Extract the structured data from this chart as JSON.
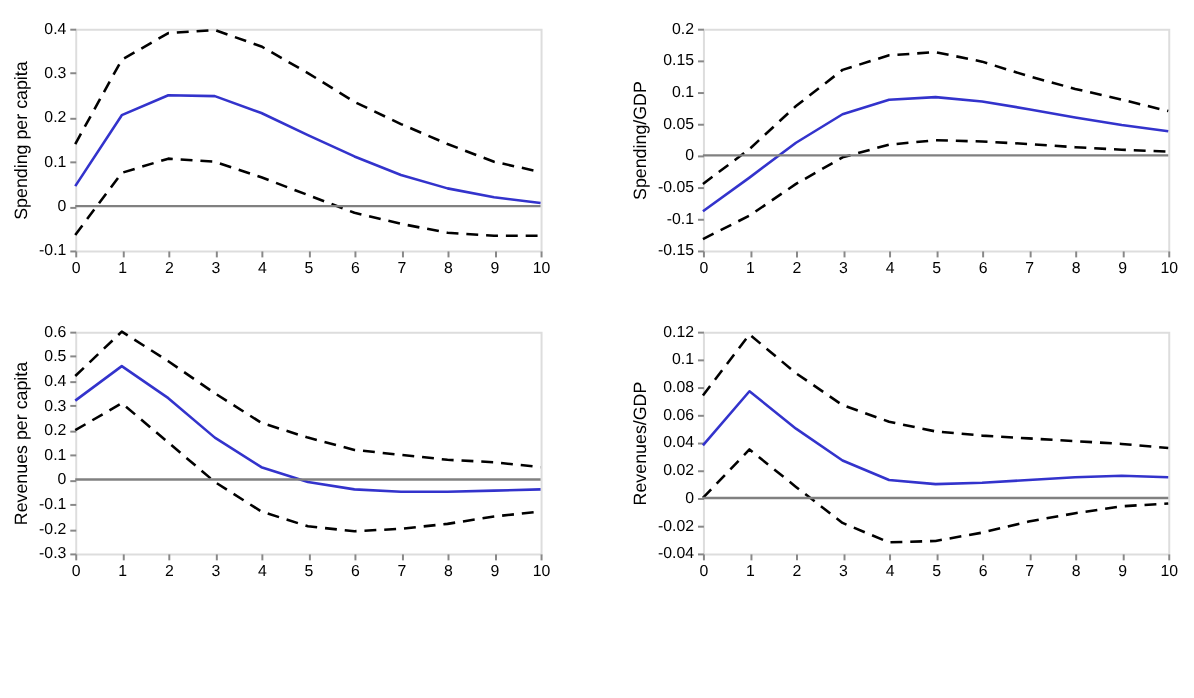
{
  "chart_data": [
    {
      "type": "line",
      "ylabel": "Spending per capita",
      "x": [
        0,
        1,
        2,
        3,
        4,
        5,
        6,
        7,
        8,
        9,
        10
      ],
      "xlim": [
        0,
        10
      ],
      "xticks": [
        0,
        1,
        2,
        3,
        4,
        5,
        6,
        7,
        8,
        9,
        10
      ],
      "ylim": [
        -0.1,
        0.4
      ],
      "yticks": [
        -0.1,
        0,
        0.1,
        0.2,
        0.3,
        0.4
      ],
      "grid": false,
      "ref_lines": [
        {
          "axis": "y",
          "value": 0,
          "color": "#808080"
        }
      ],
      "series": [
        {
          "color": "#3333cc",
          "line_style": "solid",
          "values": [
            0.045,
            0.205,
            0.25,
            0.248,
            0.21,
            0.16,
            0.112,
            0.07,
            0.04,
            0.02,
            0.007
          ]
        },
        {
          "color": "#000000",
          "line_style": "dashed",
          "values": [
            0.14,
            0.33,
            0.39,
            0.397,
            0.36,
            0.3,
            0.235,
            0.185,
            0.14,
            0.1,
            0.077
          ]
        },
        {
          "color": "#000000",
          "line_style": "dashed",
          "values": [
            -0.065,
            0.075,
            0.107,
            0.1,
            0.065,
            0.025,
            -0.015,
            -0.04,
            -0.06,
            -0.067,
            -0.067
          ]
        }
      ]
    },
    {
      "type": "line",
      "ylabel": "Spending/GDP",
      "x": [
        0,
        1,
        2,
        3,
        4,
        5,
        6,
        7,
        8,
        9,
        10
      ],
      "xlim": [
        0,
        10
      ],
      "xticks": [
        0,
        1,
        2,
        3,
        4,
        5,
        6,
        7,
        8,
        9,
        10
      ],
      "ylim": [
        -0.15,
        0.2
      ],
      "yticks": [
        -0.15,
        -0.1,
        -0.05,
        0,
        0.05,
        0.1,
        0.15,
        0.2
      ],
      "grid": false,
      "ref_lines": [
        {
          "axis": "y",
          "value": 0,
          "color": "#808080"
        }
      ],
      "series": [
        {
          "color": "#3333cc",
          "line_style": "solid",
          "values": [
            -0.088,
            -0.035,
            0.02,
            0.065,
            0.088,
            0.092,
            0.085,
            0.073,
            0.06,
            0.048,
            0.038
          ]
        },
        {
          "color": "#000000",
          "line_style": "dashed",
          "values": [
            -0.045,
            0.01,
            0.078,
            0.135,
            0.158,
            0.163,
            0.148,
            0.125,
            0.105,
            0.088,
            0.07
          ]
        },
        {
          "color": "#000000",
          "line_style": "dashed",
          "values": [
            -0.132,
            -0.095,
            -0.045,
            -0.003,
            0.017,
            0.024,
            0.022,
            0.018,
            0.013,
            0.009,
            0.006
          ]
        }
      ]
    },
    {
      "type": "line",
      "ylabel": "Revenues per capita",
      "x": [
        0,
        1,
        2,
        3,
        4,
        5,
        6,
        7,
        8,
        9,
        10
      ],
      "xlim": [
        0,
        10
      ],
      "xticks": [
        0,
        1,
        2,
        3,
        4,
        5,
        6,
        7,
        8,
        9,
        10
      ],
      "ylim": [
        -0.3,
        0.6
      ],
      "yticks": [
        -0.3,
        -0.2,
        -0.1,
        0,
        0.1,
        0.2,
        0.3,
        0.4,
        0.5,
        0.6
      ],
      "grid": false,
      "ref_lines": [
        {
          "axis": "y",
          "value": 0,
          "color": "#808080"
        }
      ],
      "series": [
        {
          "color": "#3333cc",
          "line_style": "solid",
          "values": [
            0.32,
            0.46,
            0.33,
            0.17,
            0.05,
            -0.01,
            -0.04,
            -0.05,
            -0.05,
            -0.045,
            -0.04
          ]
        },
        {
          "color": "#000000",
          "line_style": "dashed",
          "values": [
            0.42,
            0.6,
            0.48,
            0.35,
            0.23,
            0.17,
            0.12,
            0.1,
            0.08,
            0.07,
            0.05
          ]
        },
        {
          "color": "#000000",
          "line_style": "dashed",
          "values": [
            0.2,
            0.31,
            0.15,
            -0.01,
            -0.13,
            -0.19,
            -0.21,
            -0.2,
            -0.18,
            -0.15,
            -0.13
          ]
        }
      ]
    },
    {
      "type": "line",
      "ylabel": "Revenues/GDP",
      "x": [
        0,
        1,
        2,
        3,
        4,
        5,
        6,
        7,
        8,
        9,
        10
      ],
      "xlim": [
        0,
        10
      ],
      "xticks": [
        0,
        1,
        2,
        3,
        4,
        5,
        6,
        7,
        8,
        9,
        10
      ],
      "ylim": [
        -0.04,
        0.12
      ],
      "yticks": [
        -0.04,
        -0.02,
        0,
        0.02,
        0.04,
        0.06,
        0.08,
        0.1,
        0.12
      ],
      "grid": false,
      "ref_lines": [
        {
          "axis": "y",
          "value": 0,
          "color": "#808080"
        }
      ],
      "series": [
        {
          "color": "#3333cc",
          "line_style": "solid",
          "values": [
            0.038,
            0.077,
            0.05,
            0.027,
            0.013,
            0.01,
            0.011,
            0.013,
            0.015,
            0.016,
            0.015
          ]
        },
        {
          "color": "#000000",
          "line_style": "dashed",
          "values": [
            0.074,
            0.118,
            0.09,
            0.067,
            0.055,
            0.048,
            0.045,
            0.043,
            0.041,
            0.039,
            0.036
          ]
        },
        {
          "color": "#000000",
          "line_style": "dashed",
          "values": [
            0.0,
            0.035,
            0.008,
            -0.018,
            -0.032,
            -0.031,
            -0.025,
            -0.017,
            -0.011,
            -0.006,
            -0.004
          ]
        }
      ]
    }
  ]
}
